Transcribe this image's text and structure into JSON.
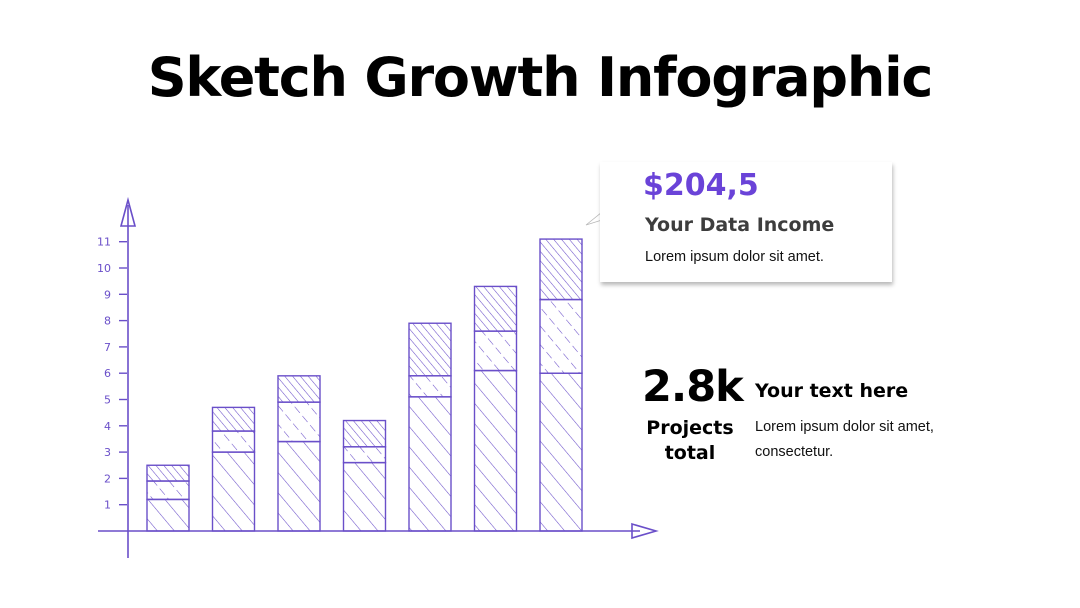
{
  "title": "Sketch Growth Infographic",
  "colors": {
    "accent": "#6a43d8",
    "sketch": "#6a4fc9"
  },
  "callout": {
    "value": "$204,5",
    "heading": "Your Data Income",
    "body": "Lorem ipsum dolor sit amet."
  },
  "stat": {
    "value": "2.8k",
    "label_line1": "Projects",
    "label_line2": "total"
  },
  "side": {
    "heading": "Your text here",
    "body_line1": "Lorem ipsum dolor sit amet,",
    "body_line2": "consectetur."
  },
  "chart_data": {
    "type": "bar",
    "stacked": true,
    "categories": [
      "",
      "",
      "",
      "",
      "",
      "",
      ""
    ],
    "series": [
      {
        "values": [
          1.2,
          3.0,
          3.4,
          2.6,
          5.1,
          6.1,
          6.0
        ],
        "pattern": "diagonal-sparse"
      },
      {
        "values": [
          0.7,
          0.8,
          1.5,
          0.6,
          0.8,
          1.5,
          2.8
        ],
        "pattern": "dashed"
      },
      {
        "values": [
          0.6,
          0.9,
          1.0,
          1.0,
          2.0,
          1.7,
          2.3
        ],
        "pattern": "diagonal-dense"
      }
    ],
    "yticks": [
      1,
      2,
      3,
      4,
      5,
      6,
      7,
      8,
      9,
      10,
      11
    ],
    "ylim": [
      0,
      11
    ],
    "xlabel": "",
    "ylabel": "",
    "grid": false,
    "legend": "none"
  }
}
